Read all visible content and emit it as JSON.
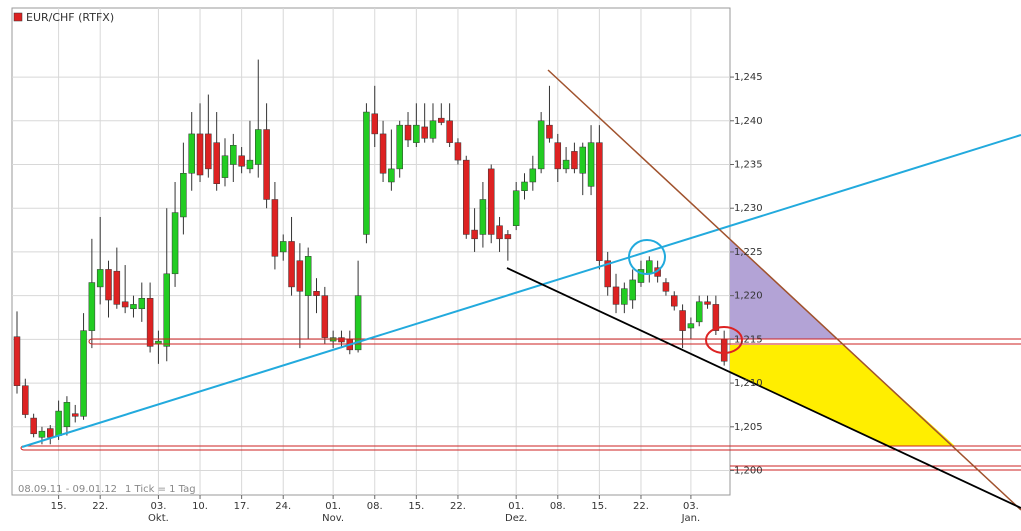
{
  "chart_data": {
    "type": "candlestick",
    "title": "EUR/CHF (RTFX)",
    "range_label": "08.09.11 - 09.01.12",
    "tick_label": "1 Tick = 1 Tag",
    "up_color": "#22cc22",
    "down_color": "#dd2222",
    "open": [
      1.2153,
      1.2097,
      1.206,
      1.2038,
      1.2048,
      1.204,
      1.205,
      1.2065,
      1.2062,
      1.216,
      1.221,
      1.223,
      1.2228,
      1.2193,
      1.2185,
      1.2185,
      1.2197,
      1.2145,
      1.2142,
      1.2225,
      1.229,
      1.234,
      1.2385,
      1.2385,
      1.2375,
      1.2335,
      1.235,
      1.236,
      1.2345,
      1.235,
      1.239,
      1.231,
      1.225,
      1.2262,
      1.224,
      1.22,
      1.2205,
      1.22,
      1.2148,
      1.2152,
      1.215,
      1.2138,
      1.227,
      1.2408,
      1.2385,
      1.233,
      1.2345,
      1.2395,
      1.2375,
      1.2393,
      1.238,
      1.2403,
      1.24,
      1.2375,
      1.2355,
      1.2275,
      1.227,
      1.2345,
      1.228,
      1.227,
      1.228,
      1.232,
      1.233,
      1.2345,
      1.2395,
      1.2375,
      1.2345,
      1.2365,
      1.234,
      1.2325,
      1.2375,
      1.224,
      1.221,
      1.219,
      1.2195,
      1.2215,
      1.2225,
      1.2232,
      1.2215,
      1.22,
      1.2183,
      1.2163,
      1.217,
      1.2193,
      1.219,
      1.215
    ],
    "high": [
      1.2182,
      1.2105,
      1.2065,
      1.205,
      1.2052,
      1.208,
      1.2085,
      1.2075,
      1.218,
      1.2265,
      1.229,
      1.224,
      1.2255,
      1.2235,
      1.22,
      1.2215,
      1.2215,
      1.216,
      1.23,
      1.233,
      1.2375,
      1.241,
      1.242,
      1.243,
      1.241,
      1.238,
      1.2385,
      1.237,
      1.24,
      1.247,
      1.242,
      1.233,
      1.227,
      1.229,
      1.226,
      1.2255,
      1.222,
      1.221,
      1.216,
      1.216,
      1.216,
      1.224,
      1.242,
      1.244,
      1.24,
      1.239,
      1.24,
      1.241,
      1.242,
      1.242,
      1.242,
      1.242,
      1.242,
      1.238,
      1.236,
      1.23,
      1.233,
      1.235,
      1.229,
      1.2275,
      1.233,
      1.234,
      1.236,
      1.241,
      1.244,
      1.2385,
      1.237,
      1.2375,
      1.2375,
      1.2395,
      1.2395,
      1.225,
      1.2225,
      1.2215,
      1.223,
      1.224,
      1.2245,
      1.224,
      1.222,
      1.2205,
      1.219,
      1.2175,
      1.22,
      1.22,
      1.22,
      1.216
    ],
    "low": [
      1.2088,
      1.206,
      1.2038,
      1.203,
      1.203,
      1.2035,
      1.204,
      1.2055,
      1.2058,
      1.214,
      1.219,
      1.2175,
      1.2185,
      1.218,
      1.2175,
      1.217,
      1.2135,
      1.2122,
      1.2125,
      1.221,
      1.227,
      1.232,
      1.233,
      1.2335,
      1.232,
      1.2325,
      1.233,
      1.234,
      1.234,
      1.2335,
      1.23,
      1.223,
      1.224,
      1.22,
      1.214,
      1.215,
      1.218,
      1.2145,
      1.214,
      1.214,
      1.2133,
      1.2135,
      1.226,
      1.237,
      1.233,
      1.232,
      1.2335,
      1.237,
      1.237,
      1.2375,
      1.2375,
      1.2395,
      1.237,
      1.235,
      1.2265,
      1.225,
      1.2255,
      1.226,
      1.225,
      1.224,
      1.2275,
      1.231,
      1.232,
      1.234,
      1.2375,
      1.233,
      1.234,
      1.234,
      1.2315,
      1.2315,
      1.223,
      1.22,
      1.218,
      1.218,
      1.2185,
      1.221,
      1.2215,
      1.2215,
      1.22,
      1.2183,
      1.214,
      1.215,
      1.2165,
      1.2185,
      1.2155,
      1.212
    ],
    "close": [
      1.2097,
      1.2064,
      1.2042,
      1.2045,
      1.2038,
      1.2068,
      1.2078,
      1.2062,
      1.216,
      1.2215,
      1.223,
      1.2195,
      1.219,
      1.2187,
      1.219,
      1.2197,
      1.2142,
      1.2148,
      1.2225,
      1.2295,
      1.234,
      1.2385,
      1.2338,
      1.2345,
      1.2328,
      1.236,
      1.2372,
      1.2348,
      1.2355,
      1.239,
      1.231,
      1.2245,
      1.2262,
      1.221,
      1.2205,
      1.2245,
      1.22,
      1.2152,
      1.2152,
      1.2147,
      1.2138,
      1.22,
      1.241,
      1.2385,
      1.234,
      1.2345,
      1.2395,
      1.2378,
      1.2395,
      1.238,
      1.24,
      1.2398,
      1.2375,
      1.2355,
      1.227,
      1.2265,
      1.231,
      1.227,
      1.2265,
      1.2265,
      1.232,
      1.233,
      1.2345,
      1.24,
      1.238,
      1.2345,
      1.2355,
      1.2345,
      1.237,
      1.2375,
      1.224,
      1.221,
      1.219,
      1.2208,
      1.2218,
      1.223,
      1.224,
      1.2222,
      1.2205,
      1.2188,
      1.216,
      1.2168,
      1.2193,
      1.219,
      1.216,
      1.2125
    ],
    "xlim": [
      -0.6,
      85.7
    ],
    "xticks": [
      {
        "value": 5,
        "label": "15."
      },
      {
        "value": 10,
        "label": "22."
      },
      {
        "value": 17,
        "label": "03."
      },
      {
        "value": 22,
        "label": "10."
      },
      {
        "value": 27,
        "label": "17."
      },
      {
        "value": 32,
        "label": "24."
      },
      {
        "value": 38,
        "label": "01."
      },
      {
        "value": 43,
        "label": "08."
      },
      {
        "value": 48,
        "label": "15."
      },
      {
        "value": 53,
        "label": "22."
      },
      {
        "value": 60,
        "label": "01."
      },
      {
        "value": 65,
        "label": "08."
      },
      {
        "value": 70,
        "label": "15."
      },
      {
        "value": 75,
        "label": "22."
      },
      {
        "value": 81,
        "label": "03."
      }
    ],
    "month_ticks": [
      {
        "value": 17,
        "label": "Okt."
      },
      {
        "value": 38,
        "label": "Nov."
      },
      {
        "value": 60,
        "label": "Dez."
      },
      {
        "value": 81,
        "label": "Jan."
      }
    ],
    "ylim": [
      1.1972,
      1.2529
    ],
    "yticks": [
      {
        "value": 1.2,
        "label": "1,200"
      },
      {
        "value": 1.205,
        "label": "1,205"
      },
      {
        "value": 1.21,
        "label": "1,210"
      },
      {
        "value": 1.215,
        "label": "1,215"
      },
      {
        "value": 1.22,
        "label": "1,220"
      },
      {
        "value": 1.225,
        "label": "1,225"
      },
      {
        "value": 1.23,
        "label": "1,230"
      },
      {
        "value": 1.235,
        "label": "1,235"
      },
      {
        "value": 1.24,
        "label": "1,240"
      },
      {
        "value": 1.245,
        "label": "1,245"
      }
    ],
    "grid": true
  }
}
